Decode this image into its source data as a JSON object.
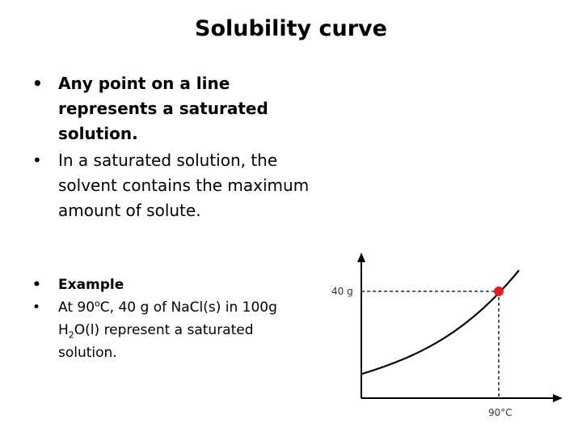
{
  "title": "Solubility curve",
  "bullets_main": [
    "Any point on a line represents a saturated solution.",
    "In a saturated solution, the solvent contains the maximum amount of solute."
  ],
  "bullet_char": "•",
  "example_label": "Example",
  "example_text": {
    "part1": "At 90",
    "sup": "o",
    "part2": "C, 40 g of NaCl(s) in 100g H",
    "sub": "2",
    "part3": "O(l) represent a saturated solution."
  },
  "graph": {
    "y_marker_label": "40 g",
    "x_marker_label": "90°C",
    "point_color": "#e02020",
    "line_color": "#000000"
  }
}
